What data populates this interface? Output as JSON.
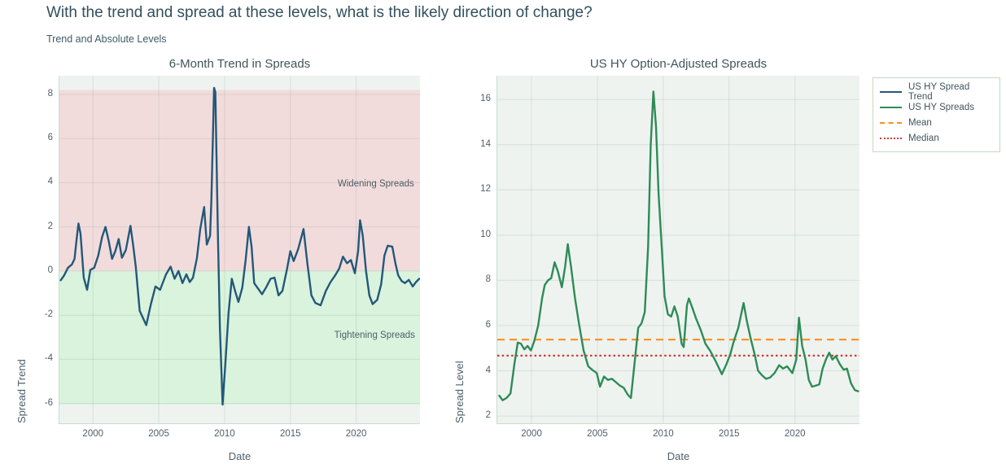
{
  "page": {
    "title": "With the trend and spread at these levels, what is the likely direction of change?",
    "subtitle": "Trend and Absolute Levels"
  },
  "colors": {
    "trend_line": "#23587a",
    "spread_line": "#2e8b57",
    "mean_line": "#ff8f1f",
    "median_line": "#cf3b2f",
    "widening_fill": "#f2dcdb",
    "tightening_fill": "#d9f3dc",
    "plot_background": "#eef3f0",
    "grid": "rgba(70,120,90,0.14)",
    "axis_line": "#c9dccf",
    "title_text": "#32505d",
    "muted_text": "#4e5f6a"
  },
  "legend": {
    "items": [
      {
        "label": "US HY Spread Trend",
        "color": "#23587a",
        "dash": "solid"
      },
      {
        "label": "US HY Spreads",
        "color": "#2e8b57",
        "dash": "solid"
      },
      {
        "label": "Mean",
        "color": "#ff8f1f",
        "dash": "dashed"
      },
      {
        "label": "Median",
        "color": "#cf3b2f",
        "dash": "dotted"
      }
    ]
  },
  "chart_data": [
    {
      "type": "line",
      "title": "6-Month Trend in Spreads",
      "xlabel": "Date",
      "ylabel": "Spread Trend",
      "xlim": [
        1997.45,
        2024.85
      ],
      "ylim": [
        -6.9,
        8.85
      ],
      "xticks": [
        2000,
        2005,
        2010,
        2015,
        2020
      ],
      "yticks": [
        -6,
        -4,
        -2,
        0,
        2,
        4,
        6,
        8
      ],
      "grid": true,
      "regions": [
        {
          "name": "widening",
          "from": 0,
          "to": 8.2,
          "color": "#f2dcdb"
        },
        {
          "name": "tightening",
          "from": -6.05,
          "to": 0,
          "color": "#d9f3dc"
        }
      ],
      "annotations": [
        {
          "text": "Widening Spreads",
          "x": 2021.5,
          "y": 3.95
        },
        {
          "text": "Tightening Spreads",
          "x": 2021.4,
          "y": -2.9
        }
      ],
      "series": [
        {
          "name": "US HY Spread Trend",
          "color": "#23587a",
          "points": [
            [
              1997.55,
              -0.42
            ],
            [
              1997.8,
              -0.2
            ],
            [
              1998.1,
              0.15
            ],
            [
              1998.4,
              0.3
            ],
            [
              1998.6,
              0.55
            ],
            [
              1998.75,
              1.4
            ],
            [
              1998.9,
              2.15
            ],
            [
              1999.05,
              1.7
            ],
            [
              1999.3,
              -0.3
            ],
            [
              1999.55,
              -0.85
            ],
            [
              1999.8,
              0.05
            ],
            [
              2000.1,
              0.15
            ],
            [
              2000.4,
              0.7
            ],
            [
              2000.7,
              1.55
            ],
            [
              2000.95,
              2.0
            ],
            [
              2001.2,
              1.35
            ],
            [
              2001.45,
              0.55
            ],
            [
              2001.7,
              0.9
            ],
            [
              2001.95,
              1.45
            ],
            [
              2002.2,
              0.6
            ],
            [
              2002.5,
              0.95
            ],
            [
              2002.85,
              2.05
            ],
            [
              2003.05,
              1.2
            ],
            [
              2003.25,
              0.2
            ],
            [
              2003.55,
              -1.8
            ],
            [
              2004.05,
              -2.45
            ],
            [
              2004.4,
              -1.5
            ],
            [
              2004.75,
              -0.7
            ],
            [
              2005.1,
              -0.85
            ],
            [
              2005.55,
              -0.15
            ],
            [
              2005.9,
              0.2
            ],
            [
              2006.2,
              -0.35
            ],
            [
              2006.5,
              0.0
            ],
            [
              2006.8,
              -0.55
            ],
            [
              2007.1,
              -0.15
            ],
            [
              2007.35,
              -0.5
            ],
            [
              2007.6,
              -0.3
            ],
            [
              2007.9,
              0.6
            ],
            [
              2008.15,
              1.9
            ],
            [
              2008.45,
              2.9
            ],
            [
              2008.65,
              1.2
            ],
            [
              2008.9,
              1.6
            ],
            [
              2009.0,
              3.2
            ],
            [
              2009.2,
              8.3
            ],
            [
              2009.3,
              8.1
            ],
            [
              2009.5,
              1.5
            ],
            [
              2009.65,
              -2.6
            ],
            [
              2009.85,
              -6.05
            ],
            [
              2010.05,
              -4.3
            ],
            [
              2010.3,
              -1.9
            ],
            [
              2010.55,
              -0.35
            ],
            [
              2010.8,
              -0.9
            ],
            [
              2011.05,
              -1.4
            ],
            [
              2011.35,
              -0.75
            ],
            [
              2011.6,
              0.5
            ],
            [
              2011.85,
              2.0
            ],
            [
              2012.05,
              1.1
            ],
            [
              2012.25,
              -0.55
            ],
            [
              2012.55,
              -0.8
            ],
            [
              2012.85,
              -1.05
            ],
            [
              2013.15,
              -0.75
            ],
            [
              2013.5,
              -0.35
            ],
            [
              2013.8,
              -0.3
            ],
            [
              2014.1,
              -1.1
            ],
            [
              2014.4,
              -0.9
            ],
            [
              2014.75,
              0.1
            ],
            [
              2015.0,
              0.9
            ],
            [
              2015.25,
              0.45
            ],
            [
              2015.6,
              1.0
            ],
            [
              2016.0,
              1.9
            ],
            [
              2016.3,
              0.3
            ],
            [
              2016.6,
              -1.1
            ],
            [
              2016.9,
              -1.45
            ],
            [
              2017.3,
              -1.55
            ],
            [
              2017.7,
              -0.9
            ],
            [
              2018.05,
              -0.5
            ],
            [
              2018.4,
              -0.2
            ],
            [
              2018.7,
              0.1
            ],
            [
              2019.0,
              0.65
            ],
            [
              2019.3,
              0.35
            ],
            [
              2019.6,
              0.5
            ],
            [
              2019.9,
              -0.1
            ],
            [
              2020.15,
              0.9
            ],
            [
              2020.3,
              2.3
            ],
            [
              2020.5,
              1.6
            ],
            [
              2020.75,
              0.0
            ],
            [
              2021.0,
              -1.1
            ],
            [
              2021.25,
              -1.5
            ],
            [
              2021.6,
              -1.3
            ],
            [
              2021.9,
              -0.6
            ],
            [
              2022.15,
              0.7
            ],
            [
              2022.4,
              1.15
            ],
            [
              2022.75,
              1.1
            ],
            [
              2023.0,
              0.3
            ],
            [
              2023.2,
              -0.2
            ],
            [
              2023.45,
              -0.45
            ],
            [
              2023.7,
              -0.55
            ],
            [
              2024.0,
              -0.4
            ],
            [
              2024.3,
              -0.7
            ],
            [
              2024.55,
              -0.5
            ],
            [
              2024.8,
              -0.35
            ]
          ]
        }
      ]
    },
    {
      "type": "line",
      "title": "US HY Option-Adjusted Spreads",
      "xlabel": "Date",
      "ylabel": "Spread Level",
      "xlim": [
        1997.4,
        2024.9
      ],
      "ylim": [
        1.68,
        17.05
      ],
      "xticks": [
        2000,
        2005,
        2010,
        2015,
        2020
      ],
      "yticks": [
        2,
        4,
        6,
        8,
        10,
        12,
        14,
        16
      ],
      "grid": true,
      "hlines": [
        {
          "name": "Mean",
          "value": 5.38,
          "color": "#ff8f1f",
          "dash": "dashed"
        },
        {
          "name": "Median",
          "value": 4.67,
          "color": "#cf3b2f",
          "dash": "dotted"
        }
      ],
      "series": [
        {
          "name": "US HY Spreads",
          "color": "#2e8b57",
          "points": [
            [
              1997.55,
              2.9
            ],
            [
              1997.8,
              2.7
            ],
            [
              1998.1,
              2.8
            ],
            [
              1998.4,
              3.0
            ],
            [
              1998.7,
              4.3
            ],
            [
              1998.95,
              5.25
            ],
            [
              1999.2,
              5.2
            ],
            [
              1999.45,
              4.95
            ],
            [
              1999.7,
              5.1
            ],
            [
              1999.95,
              4.9
            ],
            [
              2000.2,
              5.3
            ],
            [
              2000.5,
              6.0
            ],
            [
              2000.8,
              7.2
            ],
            [
              2001.0,
              7.8
            ],
            [
              2001.25,
              8.0
            ],
            [
              2001.5,
              8.1
            ],
            [
              2001.75,
              8.8
            ],
            [
              2002.0,
              8.4
            ],
            [
              2002.3,
              7.7
            ],
            [
              2002.55,
              8.6
            ],
            [
              2002.75,
              9.6
            ],
            [
              2003.0,
              8.6
            ],
            [
              2003.3,
              7.2
            ],
            [
              2003.6,
              6.1
            ],
            [
              2003.95,
              4.9
            ],
            [
              2004.3,
              4.2
            ],
            [
              2004.6,
              4.05
            ],
            [
              2004.95,
              3.9
            ],
            [
              2005.2,
              3.3
            ],
            [
              2005.5,
              3.75
            ],
            [
              2005.8,
              3.6
            ],
            [
              2006.1,
              3.65
            ],
            [
              2006.4,
              3.5
            ],
            [
              2006.7,
              3.35
            ],
            [
              2007.0,
              3.25
            ],
            [
              2007.3,
              2.95
            ],
            [
              2007.55,
              2.8
            ],
            [
              2007.85,
              4.5
            ],
            [
              2008.1,
              5.9
            ],
            [
              2008.35,
              6.1
            ],
            [
              2008.6,
              6.6
            ],
            [
              2008.85,
              9.5
            ],
            [
              2009.05,
              14.0
            ],
            [
              2009.25,
              16.35
            ],
            [
              2009.45,
              14.8
            ],
            [
              2009.65,
              11.8
            ],
            [
              2009.9,
              9.3
            ],
            [
              2010.1,
              7.3
            ],
            [
              2010.35,
              6.5
            ],
            [
              2010.6,
              6.4
            ],
            [
              2010.85,
              6.85
            ],
            [
              2011.1,
              6.4
            ],
            [
              2011.4,
              5.2
            ],
            [
              2011.55,
              5.05
            ],
            [
              2011.8,
              6.9
            ],
            [
              2011.95,
              7.2
            ],
            [
              2012.2,
              6.8
            ],
            [
              2012.5,
              6.3
            ],
            [
              2012.85,
              5.8
            ],
            [
              2013.2,
              5.2
            ],
            [
              2013.6,
              4.85
            ],
            [
              2014.0,
              4.4
            ],
            [
              2014.45,
              3.85
            ],
            [
              2014.8,
              4.3
            ],
            [
              2015.1,
              4.75
            ],
            [
              2015.35,
              5.3
            ],
            [
              2015.7,
              5.9
            ],
            [
              2015.95,
              6.6
            ],
            [
              2016.1,
              7.0
            ],
            [
              2016.35,
              6.2
            ],
            [
              2016.65,
              5.4
            ],
            [
              2016.95,
              4.7
            ],
            [
              2017.2,
              4.0
            ],
            [
              2017.5,
              3.8
            ],
            [
              2017.8,
              3.65
            ],
            [
              2018.1,
              3.7
            ],
            [
              2018.45,
              3.9
            ],
            [
              2018.8,
              4.25
            ],
            [
              2019.1,
              4.1
            ],
            [
              2019.4,
              4.2
            ],
            [
              2019.8,
              3.9
            ],
            [
              2020.1,
              4.5
            ],
            [
              2020.3,
              6.35
            ],
            [
              2020.55,
              5.1
            ],
            [
              2020.8,
              4.5
            ],
            [
              2021.05,
              3.6
            ],
            [
              2021.3,
              3.3
            ],
            [
              2021.6,
              3.35
            ],
            [
              2021.85,
              3.4
            ],
            [
              2022.1,
              4.1
            ],
            [
              2022.35,
              4.5
            ],
            [
              2022.6,
              4.8
            ],
            [
              2022.85,
              4.5
            ],
            [
              2023.1,
              4.65
            ],
            [
              2023.4,
              4.3
            ],
            [
              2023.7,
              4.05
            ],
            [
              2023.95,
              4.1
            ],
            [
              2024.25,
              3.45
            ],
            [
              2024.55,
              3.15
            ],
            [
              2024.8,
              3.1
            ]
          ]
        }
      ]
    }
  ]
}
